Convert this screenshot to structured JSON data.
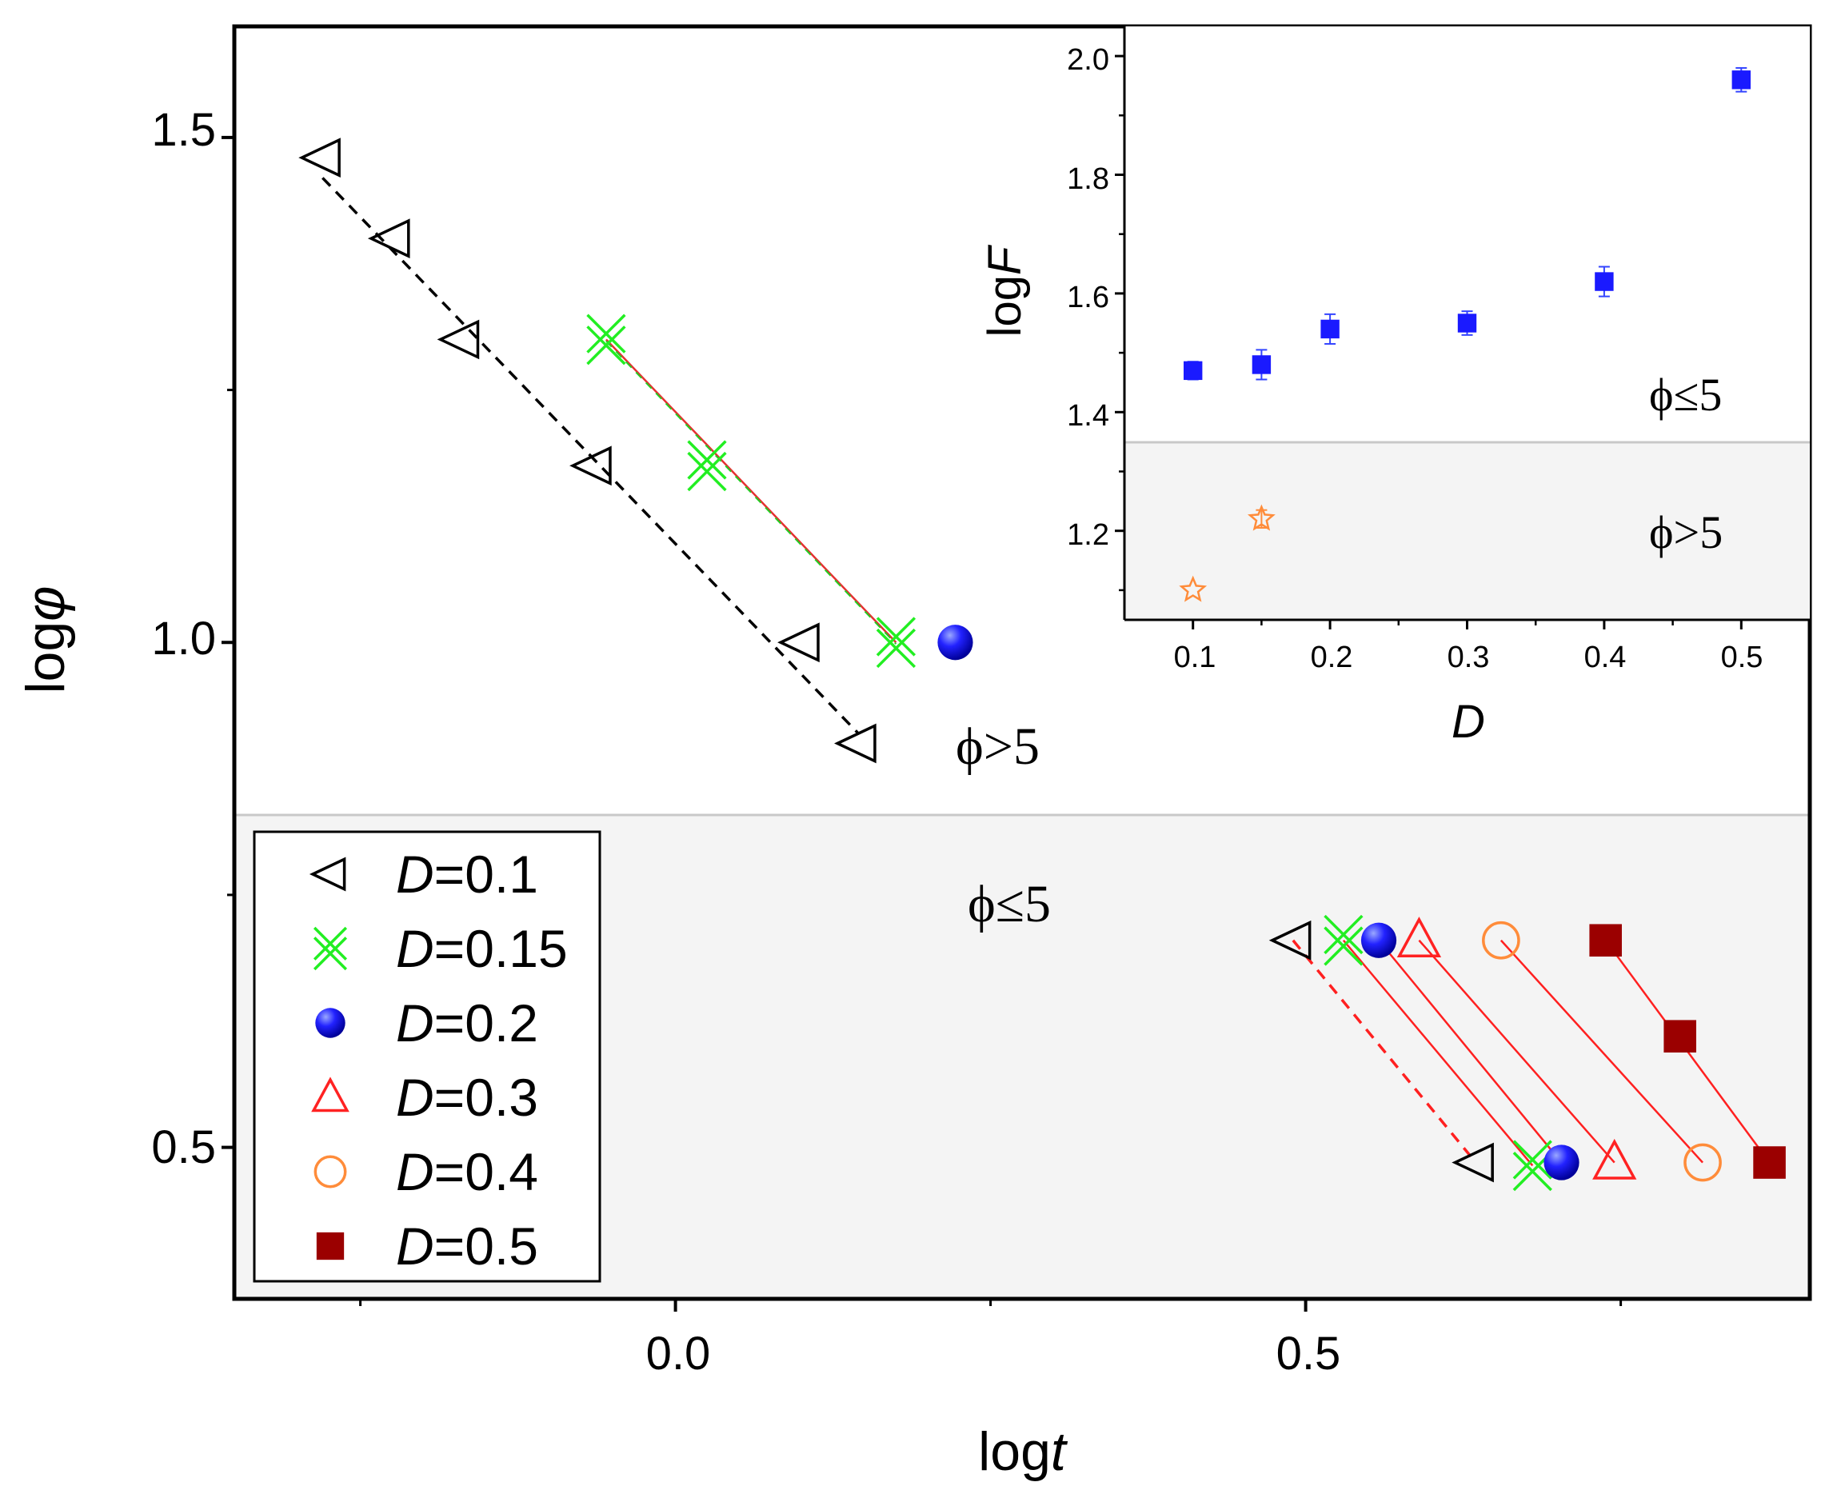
{
  "chart_data": [
    {
      "type": "scatter",
      "xlabel_prefix": "log",
      "xlabel_var": "t",
      "ylabel_prefix": "log",
      "ylabel_var": "φ",
      "xlim": [
        -0.35,
        0.9
      ],
      "ylim": [
        0.35,
        1.61
      ],
      "xticks": [
        "0.0",
        "0.5"
      ],
      "yticks": [
        "1.5",
        "1.0",
        "0.5"
      ],
      "shaded_region": {
        "y_threshold": 0.83,
        "color": "#f5f5f5"
      },
      "region_labels": {
        "upper": "ϕ>5",
        "lower": "ϕ≤5"
      },
      "legend": [
        {
          "var": "D",
          "value": "=0.1",
          "marker": "triangle-left",
          "color": "#000000"
        },
        {
          "var": "D",
          "value": "=0.15",
          "marker": "crossed-x",
          "color": "#22ee22"
        },
        {
          "var": "D",
          "value": "=0.2",
          "marker": "sphere",
          "color": "#1a1aff"
        },
        {
          "var": "D",
          "value": "=0.3",
          "marker": "triangle-up",
          "color": "#ff2222"
        },
        {
          "var": "D",
          "value": "=0.4",
          "marker": "circle-open",
          "color": "#ff8c3a"
        },
        {
          "var": "D",
          "value": "=0.5",
          "marker": "square",
          "color": "#9b0000"
        }
      ],
      "series": [
        {
          "name": "D=0.1 (ϕ>5)",
          "marker": "triangle-left",
          "color": "#000000",
          "points": [
            [
              -0.28,
              1.48
            ],
            [
              -0.225,
              1.4
            ],
            [
              -0.17,
              1.3
            ],
            [
              -0.065,
              1.175
            ],
            [
              0.1,
              1.0
            ],
            [
              0.145,
              0.9
            ]
          ],
          "fit": {
            "from": [
              -0.28,
              1.46
            ],
            "to": [
              0.145,
              0.91
            ],
            "color": "#000000",
            "dash": true
          }
        },
        {
          "name": "D=0.15 (ϕ>5)",
          "marker": "crossed-x",
          "color": "#22ee22",
          "points": [
            [
              -0.055,
              1.3
            ],
            [
              0.025,
              1.175
            ],
            [
              0.175,
              1.0
            ]
          ],
          "fit": {
            "from": [
              -0.055,
              1.3
            ],
            "to": [
              0.175,
              1.0
            ],
            "color": "#e53030",
            "dash": false
          }
        },
        {
          "name": "D=0.2 (ϕ>5)",
          "marker": "sphere",
          "color": "#1a1aff",
          "points": [
            [
              0.222,
              1.0
            ]
          ]
        },
        {
          "name": "D=0.1 (ϕ≤5)",
          "marker": "triangle-left",
          "color": "#000000",
          "points": [
            [
              0.49,
              0.705
            ],
            [
              0.635,
              0.485
            ]
          ],
          "fit": {
            "from": [
              0.49,
              0.705
            ],
            "to": [
              0.635,
              0.485
            ],
            "color": "#ff2020",
            "dash": true
          }
        },
        {
          "name": "D=0.15 (ϕ≤5)",
          "marker": "crossed-x",
          "color": "#22ee22",
          "points": [
            [
              0.53,
              0.705
            ],
            [
              0.68,
              0.482
            ]
          ],
          "fit": {
            "from": [
              0.53,
              0.705
            ],
            "to": [
              0.68,
              0.482
            ],
            "color": "#ff2020",
            "dash": false
          }
        },
        {
          "name": "D=0.2 (ϕ≤5)",
          "marker": "sphere",
          "color": "#1a1aff",
          "points": [
            [
              0.558,
              0.705
            ],
            [
              0.703,
              0.485
            ]
          ],
          "fit": {
            "from": [
              0.558,
              0.705
            ],
            "to": [
              0.703,
              0.485
            ],
            "color": "#ff2020",
            "dash": false
          }
        },
        {
          "name": "D=0.3 (ϕ≤5)",
          "marker": "triangle-up",
          "color": "#ff2222",
          "points": [
            [
              0.59,
              0.705
            ],
            [
              0.745,
              0.485
            ]
          ],
          "fit": {
            "from": [
              0.59,
              0.705
            ],
            "to": [
              0.745,
              0.485
            ],
            "color": "#ff2020",
            "dash": false
          }
        },
        {
          "name": "D=0.4 (ϕ≤5)",
          "marker": "circle-open",
          "color": "#ff8c3a",
          "points": [
            [
              0.655,
              0.705
            ],
            [
              0.815,
              0.485
            ]
          ],
          "fit": {
            "from": [
              0.655,
              0.705
            ],
            "to": [
              0.815,
              0.485
            ],
            "color": "#ff2020",
            "dash": false
          }
        },
        {
          "name": "D=0.5 (ϕ≤5)",
          "marker": "square",
          "color": "#9b0000",
          "points": [
            [
              0.738,
              0.705
            ],
            [
              0.797,
              0.61
            ],
            [
              0.868,
              0.485
            ]
          ],
          "fit": {
            "from": [
              0.738,
              0.705
            ],
            "to": [
              0.868,
              0.485
            ],
            "color": "#ff2020",
            "dash": false
          }
        }
      ]
    },
    {
      "type": "scatter",
      "xlabel_var": "D",
      "ylabel_prefix": "log",
      "ylabel_var": "F",
      "xlim": [
        0.05,
        0.55
      ],
      "ylim": [
        1.05,
        2.05
      ],
      "xticks": [
        "0.1",
        "0.2",
        "0.3",
        "0.4",
        "0.5"
      ],
      "yticks": [
        "1.2",
        "1.4",
        "1.6",
        "1.8",
        "2.0"
      ],
      "shaded_region": {
        "y_threshold": 1.35,
        "color": "#f5f5f5"
      },
      "region_labels": {
        "upper": "ϕ≤5",
        "lower": "ϕ>5"
      },
      "series": [
        {
          "name": "ϕ≤5",
          "marker": "square",
          "color": "#1a1aff",
          "points": [
            [
              0.1,
              1.47,
              0.015
            ],
            [
              0.15,
              1.48,
              0.025
            ],
            [
              0.2,
              1.54,
              0.025
            ],
            [
              0.3,
              1.55,
              0.02
            ],
            [
              0.4,
              1.62,
              0.025
            ],
            [
              0.5,
              1.96,
              0.02
            ]
          ]
        },
        {
          "name": "ϕ>5",
          "marker": "star-open",
          "color": "#ff8c3a",
          "points": [
            [
              0.1,
              1.1,
              0.0
            ],
            [
              0.15,
              1.22,
              0.015
            ]
          ]
        }
      ]
    }
  ]
}
